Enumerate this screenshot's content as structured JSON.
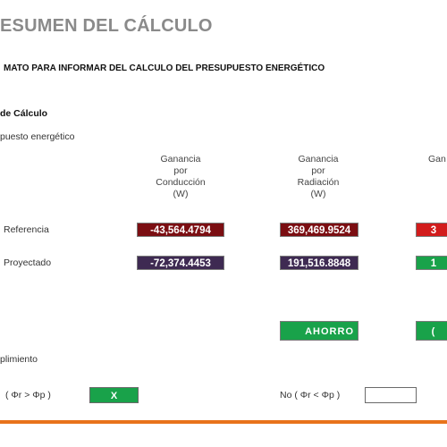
{
  "header": {
    "title": "ESUMEN DEL CÁLCULO",
    "subtitle": "MATO PARA INFORMAR DEL CALCULO DEL PRESUPUESTO ENERGÉTICO"
  },
  "section": {
    "title": "de Cálculo",
    "subtitle": "puesto energético"
  },
  "columns": [
    {
      "line1": "Ganancia",
      "line2": "por",
      "line3": "Conducción",
      "line4": "(W)"
    },
    {
      "line1": "Ganancia",
      "line2": "por",
      "line3": "Radiación",
      "line4": "(W)"
    },
    {
      "line1": "Gan"
    }
  ],
  "rows": {
    "referencia": {
      "label": "Referencia",
      "conduccion": "-43,564.4794",
      "radiacion": "369,469.9524",
      "third": "3"
    },
    "proyectado": {
      "label": "Proyectado",
      "conduccion": "-72,374.4453",
      "radiacion": "191,516.8848",
      "third": "1"
    }
  },
  "ahorro": {
    "label": "AHORRO",
    "third": "("
  },
  "cumplimiento": {
    "label": "plimiento",
    "si_text": "( Φr > Φp )",
    "si_mark": "X",
    "no_text": "No ( Φr < Φp )",
    "no_mark": ""
  },
  "colors": {
    "orange_rule": "#e8731b",
    "dark_red": "#7b0e12",
    "bright_red": "#d21c1c",
    "purple": "#3e2a52",
    "green": "#19a24a"
  }
}
